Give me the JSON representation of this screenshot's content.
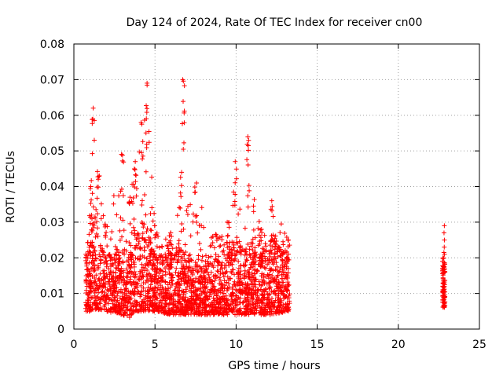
{
  "chart_data": {
    "type": "scatter",
    "title": "Day 124 of 2024, Rate Of TEC Index for receiver cn00",
    "xlabel": "GPS time / hours",
    "ylabel": "ROTI / TECUs",
    "xlim": [
      0,
      25
    ],
    "ylim": [
      0,
      0.08
    ],
    "xticks": [
      "0",
      "5",
      "10",
      "15",
      "20",
      "25"
    ],
    "yticks": [
      "0",
      "0.01",
      "0.02",
      "0.03",
      "0.04",
      "0.05",
      "0.06",
      "0.07",
      "0.08"
    ],
    "grid": true,
    "marker": "+",
    "color": "#ff0000",
    "series": [
      {
        "name": "ROTI",
        "description": "dense band of points between 0.7 h and 13.3 h, plus a short segment near 22.7-22.9 h",
        "envelope": [
          {
            "x": 0.8,
            "y_typical": [
              0.005,
              0.02
            ],
            "y_max": 0.021
          },
          {
            "x": 1.0,
            "y_typical": [
              0.005,
              0.025
            ],
            "y_max": 0.04
          },
          {
            "x": 1.2,
            "y_typical": [
              0.005,
              0.03
            ],
            "y_max": 0.062
          },
          {
            "x": 1.5,
            "y_typical": [
              0.005,
              0.025
            ],
            "y_max": 0.043
          },
          {
            "x": 2.0,
            "y_typical": [
              0.005,
              0.02
            ],
            "y_max": 0.029
          },
          {
            "x": 3.0,
            "y_typical": [
              0.004,
              0.022
            ],
            "y_max": 0.049
          },
          {
            "x": 3.4,
            "y_typical": [
              0.003,
              0.02
            ],
            "y_max": 0.037
          },
          {
            "x": 3.8,
            "y_typical": [
              0.005,
              0.025
            ],
            "y_max": 0.047
          },
          {
            "x": 4.2,
            "y_typical": [
              0.005,
              0.03
            ],
            "y_max": 0.058
          },
          {
            "x": 4.45,
            "y_typical": [
              0.005,
              0.03
            ],
            "y_max": 0.069
          },
          {
            "x": 5.0,
            "y_typical": [
              0.005,
              0.02
            ],
            "y_max": 0.029
          },
          {
            "x": 6.0,
            "y_typical": [
              0.004,
              0.02
            ],
            "y_max": 0.027
          },
          {
            "x": 6.6,
            "y_typical": [
              0.004,
              0.022
            ],
            "y_max": 0.044
          },
          {
            "x": 6.75,
            "y_typical": [
              0.004,
              0.022
            ],
            "y_max": 0.07
          },
          {
            "x": 7.5,
            "y_typical": [
              0.004,
              0.018
            ],
            "y_max": 0.041
          },
          {
            "x": 8.5,
            "y_typical": [
              0.004,
              0.018
            ],
            "y_max": 0.026
          },
          {
            "x": 9.5,
            "y_typical": [
              0.004,
              0.02
            ],
            "y_max": 0.03
          },
          {
            "x": 10.0,
            "y_typical": [
              0.004,
              0.025
            ],
            "y_max": 0.047
          },
          {
            "x": 10.7,
            "y_typical": [
              0.004,
              0.022
            ],
            "y_max": 0.054
          },
          {
            "x": 11.5,
            "y_typical": [
              0.004,
              0.02
            ],
            "y_max": 0.028
          },
          {
            "x": 12.2,
            "y_typical": [
              0.004,
              0.025
            ],
            "y_max": 0.036
          },
          {
            "x": 13.2,
            "y_typical": [
              0.005,
              0.02
            ],
            "y_max": 0.025
          },
          {
            "x": 22.8,
            "y_typical": [
              0.006,
              0.02
            ],
            "y_max": 0.029
          }
        ]
      }
    ]
  }
}
